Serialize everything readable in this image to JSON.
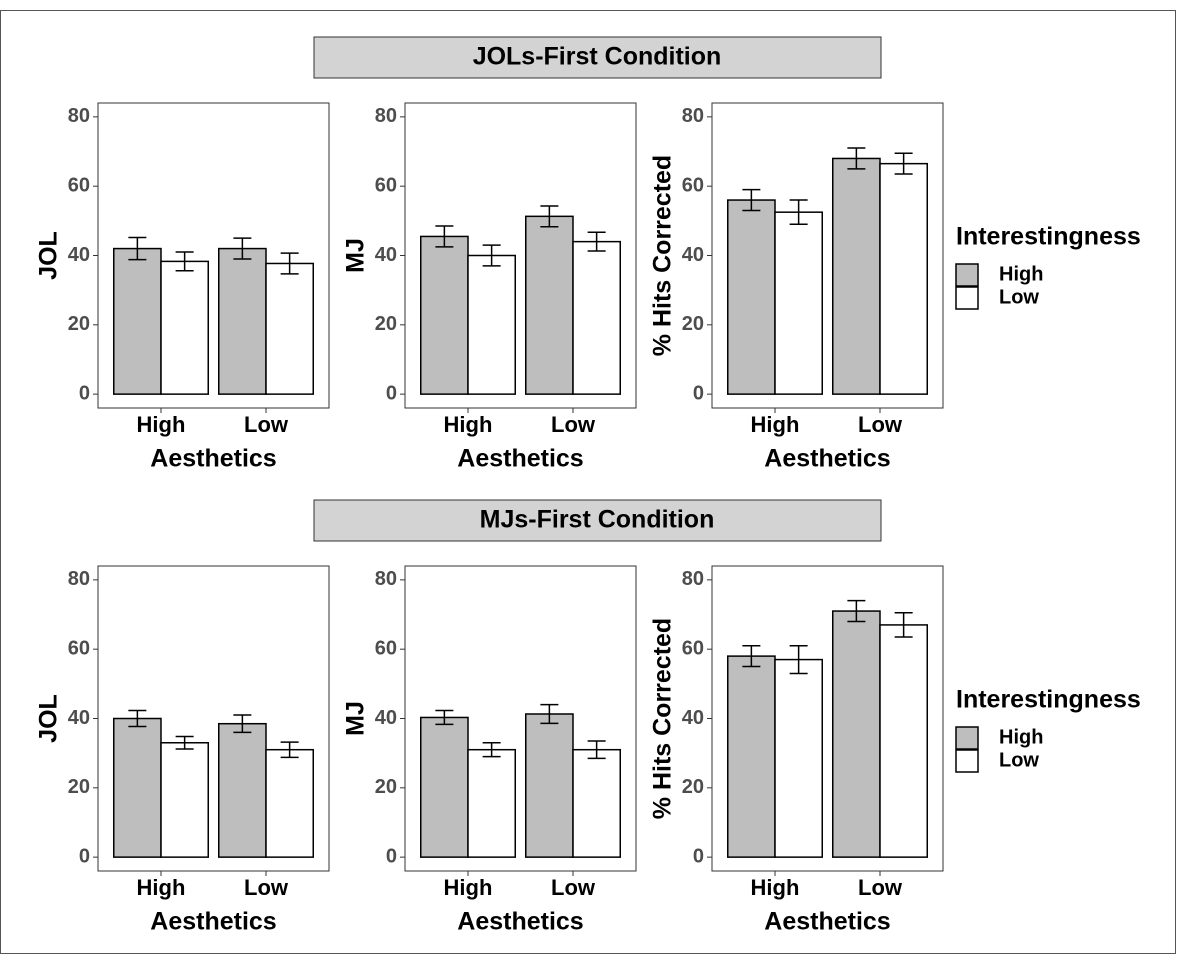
{
  "strips": [
    "JOLs-First Condition",
    "MJs-First Condition"
  ],
  "chart_data": [
    {
      "type": "bar",
      "x_label": "Aesthetics",
      "y_label": "JOL",
      "categories": [
        "High",
        "Low"
      ],
      "ylim": [
        -4,
        84
      ],
      "yticks": [
        0,
        20,
        40,
        60,
        80
      ],
      "series": [
        {
          "name": "High",
          "color": "#bebebe",
          "values": [
            42,
            42
          ],
          "errors": [
            3.2,
            3
          ]
        },
        {
          "name": "Low",
          "color": "#ffffff",
          "values": [
            38.3,
            37.7
          ],
          "errors": [
            2.7,
            3
          ]
        }
      ]
    },
    {
      "type": "bar",
      "x_label": "Aesthetics",
      "y_label": "MJ",
      "categories": [
        "High",
        "Low"
      ],
      "ylim": [
        -4,
        84
      ],
      "yticks": [
        0,
        20,
        40,
        60,
        80
      ],
      "series": [
        {
          "name": "High",
          "color": "#bebebe",
          "values": [
            45.5,
            51.3
          ],
          "errors": [
            3,
            3
          ]
        },
        {
          "name": "Low",
          "color": "#ffffff",
          "values": [
            40,
            44
          ],
          "errors": [
            3,
            2.7
          ]
        }
      ]
    },
    {
      "type": "bar",
      "x_label": "Aesthetics",
      "y_label": "% Hits Corrected",
      "categories": [
        "High",
        "Low"
      ],
      "ylim": [
        -4,
        84
      ],
      "yticks": [
        0,
        20,
        40,
        60,
        80
      ],
      "legend": "right",
      "legend_title": "Interestingness",
      "series": [
        {
          "name": "High",
          "color": "#bebebe",
          "values": [
            56,
            68
          ],
          "errors": [
            3,
            3
          ]
        },
        {
          "name": "Low",
          "color": "#ffffff",
          "values": [
            52.5,
            66.5
          ],
          "errors": [
            3.5,
            3
          ]
        }
      ]
    },
    {
      "type": "bar",
      "x_label": "Aesthetics",
      "y_label": "JOL",
      "categories": [
        "High",
        "Low"
      ],
      "ylim": [
        -4,
        84
      ],
      "yticks": [
        0,
        20,
        40,
        60,
        80
      ],
      "series": [
        {
          "name": "High",
          "color": "#bebebe",
          "values": [
            40,
            38.5
          ],
          "errors": [
            2.3,
            2.5
          ]
        },
        {
          "name": "Low",
          "color": "#ffffff",
          "values": [
            33,
            31
          ],
          "errors": [
            1.8,
            2.2
          ]
        }
      ]
    },
    {
      "type": "bar",
      "x_label": "Aesthetics",
      "y_label": "MJ",
      "categories": [
        "High",
        "Low"
      ],
      "ylim": [
        -4,
        84
      ],
      "yticks": [
        0,
        20,
        40,
        60,
        80
      ],
      "series": [
        {
          "name": "High",
          "color": "#bebebe",
          "values": [
            40.3,
            41.3
          ],
          "errors": [
            2,
            2.7
          ]
        },
        {
          "name": "Low",
          "color": "#ffffff",
          "values": [
            31,
            31
          ],
          "errors": [
            2,
            2.5
          ]
        }
      ]
    },
    {
      "type": "bar",
      "x_label": "Aesthetics",
      "y_label": "% Hits Corrected",
      "categories": [
        "High",
        "Low"
      ],
      "ylim": [
        -4,
        84
      ],
      "yticks": [
        0,
        20,
        40,
        60,
        80
      ],
      "legend": "right",
      "legend_title": "Interestingness",
      "series": [
        {
          "name": "High",
          "color": "#bebebe",
          "values": [
            58,
            71
          ],
          "errors": [
            3,
            3
          ]
        },
        {
          "name": "Low",
          "color": "#ffffff",
          "values": [
            57,
            67
          ],
          "errors": [
            4,
            3.5
          ]
        }
      ]
    }
  ]
}
